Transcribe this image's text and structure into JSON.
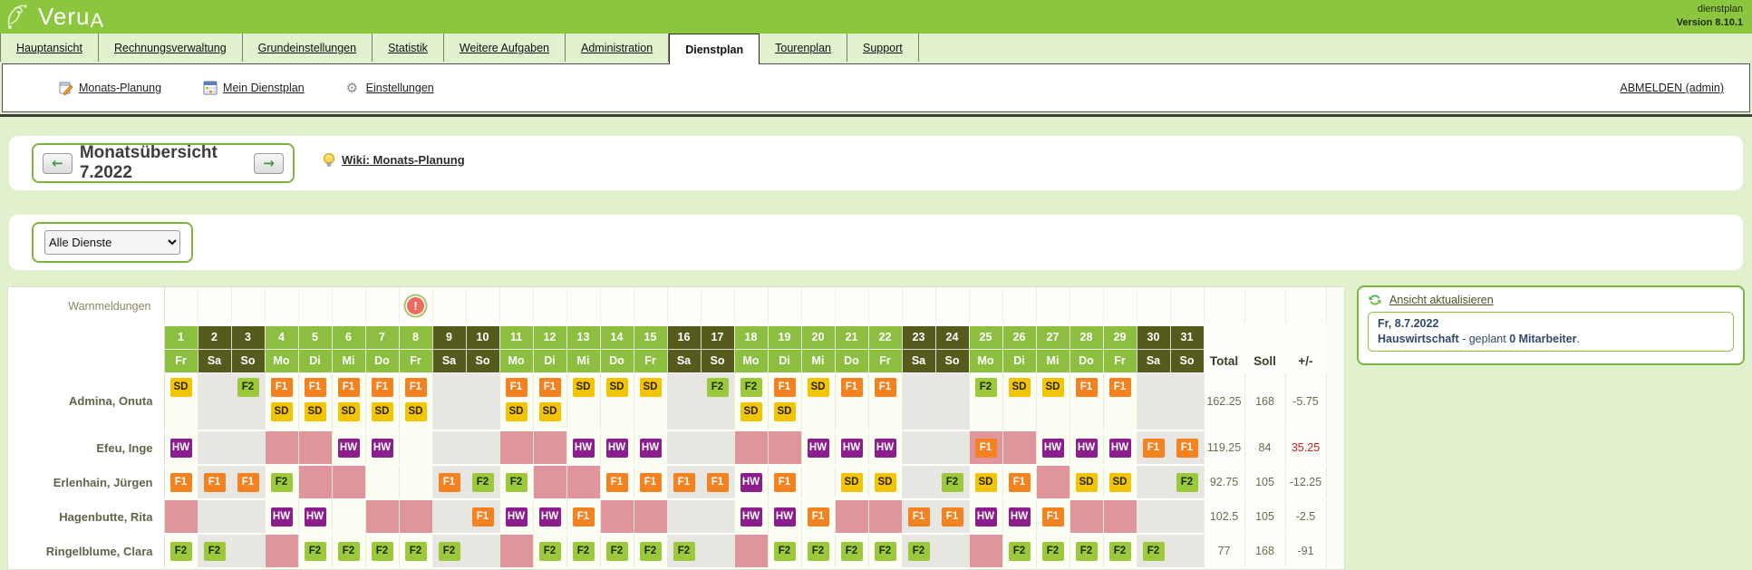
{
  "header": {
    "logo": "Veru",
    "logo_accent": "A",
    "app_name": "dienstplan",
    "version": "Version 8.10.1"
  },
  "tabs": [
    {
      "label": "Hauptansicht",
      "active": false
    },
    {
      "label": "Rechnungsverwaltung",
      "active": false
    },
    {
      "label": "Grundeinstellungen",
      "active": false
    },
    {
      "label": "Statistik",
      "active": false
    },
    {
      "label": "Weitere Aufgaben",
      "active": false
    },
    {
      "label": "Administration",
      "active": false
    },
    {
      "label": "Dienstplan",
      "active": true
    },
    {
      "label": "Tourenplan",
      "active": false
    },
    {
      "label": "Support",
      "active": false
    }
  ],
  "toolbar": {
    "links": [
      {
        "label": "Monats-Planung",
        "icon": "calendar-pencil-icon"
      },
      {
        "label": "Mein Dienstplan",
        "icon": "calendar-icon"
      },
      {
        "label": "Einstellungen",
        "icon": "gear-icon"
      }
    ],
    "logout_label": "ABMELDEN (admin)"
  },
  "month_nav": {
    "title": "Monatsübersicht 7.2022",
    "wiki_label": "Wiki: Monats-Planung"
  },
  "filter": {
    "selected": "Alle Dienste"
  },
  "roster": {
    "warn_label": "Warnmeldungen",
    "warning_days": [
      8
    ],
    "totals_headers": [
      "Total",
      "Soll",
      "+/-"
    ],
    "colors": {
      "header_day": "#8cbf3f",
      "header_weekend": "#565b1d",
      "cell_weekday": "#fcfdf3",
      "cell_weekend": "#e7e6e3",
      "cell_absence": "#e0949c"
    },
    "shift_types": {
      "SD": {
        "bg": "#f2c500",
        "fg": "#2b2300"
      },
      "F1": {
        "bg": "#f48220",
        "fg": "#ffffff"
      },
      "F2": {
        "bg": "#9cc93c",
        "fg": "#1d2a00"
      },
      "HW": {
        "bg": "#8b1d8d",
        "fg": "#ffffff"
      }
    },
    "days": [
      {
        "d": 1,
        "w": "Fr"
      },
      {
        "d": 2,
        "w": "Sa"
      },
      {
        "d": 3,
        "w": "So"
      },
      {
        "d": 4,
        "w": "Mo"
      },
      {
        "d": 5,
        "w": "Di"
      },
      {
        "d": 6,
        "w": "Mi"
      },
      {
        "d": 7,
        "w": "Do"
      },
      {
        "d": 8,
        "w": "Fr"
      },
      {
        "d": 9,
        "w": "Sa"
      },
      {
        "d": 10,
        "w": "So"
      },
      {
        "d": 11,
        "w": "Mo"
      },
      {
        "d": 12,
        "w": "Di"
      },
      {
        "d": 13,
        "w": "Mi"
      },
      {
        "d": 14,
        "w": "Do"
      },
      {
        "d": 15,
        "w": "Fr"
      },
      {
        "d": 16,
        "w": "Sa"
      },
      {
        "d": 17,
        "w": "So"
      },
      {
        "d": 18,
        "w": "Mo"
      },
      {
        "d": 19,
        "w": "Di"
      },
      {
        "d": 20,
        "w": "Mi"
      },
      {
        "d": 21,
        "w": "Do"
      },
      {
        "d": 22,
        "w": "Fr"
      },
      {
        "d": 23,
        "w": "Sa"
      },
      {
        "d": 24,
        "w": "So"
      },
      {
        "d": 25,
        "w": "Mo"
      },
      {
        "d": 26,
        "w": "Di"
      },
      {
        "d": 27,
        "w": "Mi"
      },
      {
        "d": 28,
        "w": "Do"
      },
      {
        "d": 29,
        "w": "Fr"
      },
      {
        "d": 30,
        "w": "Sa"
      },
      {
        "d": 31,
        "w": "So"
      }
    ],
    "employees": [
      {
        "name": "Admina, Onuta",
        "tall": true,
        "total": "162.25",
        "soll": "168",
        "diff": "-5.75",
        "diff_red": false,
        "cells": {
          "1": {
            "b": [
              "SD"
            ]
          },
          "3": {
            "b": [
              "F2"
            ]
          },
          "4": {
            "b": [
              "F1",
              "SD"
            ]
          },
          "5": {
            "b": [
              "F1",
              "SD"
            ]
          },
          "6": {
            "b": [
              "F1",
              "SD"
            ]
          },
          "7": {
            "b": [
              "F1",
              "SD"
            ]
          },
          "8": {
            "b": [
              "F1",
              "SD"
            ]
          },
          "11": {
            "b": [
              "F1",
              "SD"
            ]
          },
          "12": {
            "b": [
              "F1",
              "SD"
            ]
          },
          "13": {
            "b": [
              "SD"
            ]
          },
          "14": {
            "b": [
              "SD"
            ]
          },
          "15": {
            "b": [
              "SD"
            ]
          },
          "17": {
            "b": [
              "F2"
            ]
          },
          "18": {
            "b": [
              "F2",
              "SD"
            ]
          },
          "19": {
            "b": [
              "F1",
              "SD"
            ]
          },
          "20": {
            "b": [
              "SD"
            ]
          },
          "21": {
            "b": [
              "F1"
            ]
          },
          "22": {
            "b": [
              "F1"
            ]
          },
          "25": {
            "b": [
              "F2"
            ]
          },
          "26": {
            "b": [
              "SD"
            ]
          },
          "27": {
            "b": [
              "SD"
            ]
          },
          "28": {
            "b": [
              "F1"
            ]
          },
          "29": {
            "b": [
              "F1"
            ]
          }
        }
      },
      {
        "name": "Efeu, Inge",
        "tall": false,
        "total": "119.25",
        "soll": "84",
        "diff": "35.25",
        "diff_red": true,
        "cells": {
          "1": {
            "b": [
              "HW"
            ]
          },
          "4": {
            "abs": true
          },
          "5": {
            "abs": true
          },
          "6": {
            "b": [
              "HW"
            ]
          },
          "7": {
            "b": [
              "HW"
            ]
          },
          "11": {
            "abs": true
          },
          "12": {
            "abs": true
          },
          "13": {
            "b": [
              "HW"
            ]
          },
          "14": {
            "b": [
              "HW"
            ]
          },
          "15": {
            "b": [
              "HW"
            ]
          },
          "18": {
            "abs": true
          },
          "19": {
            "abs": true
          },
          "20": {
            "b": [
              "HW"
            ]
          },
          "21": {
            "b": [
              "HW"
            ]
          },
          "22": {
            "b": [
              "HW"
            ]
          },
          "25": {
            "b": [
              "F1"
            ],
            "abs": true
          },
          "26": {
            "abs": true
          },
          "27": {
            "b": [
              "HW"
            ]
          },
          "28": {
            "b": [
              "HW"
            ]
          },
          "29": {
            "b": [
              "HW"
            ]
          },
          "30": {
            "b": [
              "F1"
            ]
          },
          "31": {
            "b": [
              "F1"
            ]
          }
        }
      },
      {
        "name": "Erlenhain, Jürgen",
        "tall": false,
        "total": "92.75",
        "soll": "105",
        "diff": "-12.25",
        "diff_red": false,
        "cells": {
          "1": {
            "b": [
              "F1"
            ]
          },
          "2": {
            "b": [
              "F1"
            ]
          },
          "3": {
            "b": [
              "F1"
            ]
          },
          "4": {
            "b": [
              "F2"
            ]
          },
          "5": {
            "abs": true
          },
          "6": {
            "abs": true
          },
          "9": {
            "b": [
              "F1"
            ]
          },
          "10": {
            "b": [
              "F2"
            ]
          },
          "11": {
            "b": [
              "F2"
            ]
          },
          "12": {
            "abs": true
          },
          "13": {
            "abs": true
          },
          "14": {
            "b": [
              "F1"
            ]
          },
          "15": {
            "b": [
              "F1"
            ]
          },
          "16": {
            "b": [
              "F1"
            ]
          },
          "17": {
            "b": [
              "F1"
            ]
          },
          "18": {
            "b": [
              "HW"
            ]
          },
          "19": {
            "b": [
              "F1"
            ]
          },
          "21": {
            "b": [
              "SD"
            ]
          },
          "22": {
            "b": [
              "SD"
            ]
          },
          "24": {
            "b": [
              "F2"
            ]
          },
          "25": {
            "b": [
              "SD"
            ]
          },
          "26": {
            "b": [
              "F1"
            ]
          },
          "27": {
            "abs": true
          },
          "28": {
            "b": [
              "SD"
            ]
          },
          "29": {
            "b": [
              "SD"
            ]
          },
          "31": {
            "b": [
              "F2"
            ]
          }
        }
      },
      {
        "name": "Hagenbutte, Rita",
        "tall": false,
        "total": "102.5",
        "soll": "105",
        "diff": "-2.5",
        "diff_red": false,
        "cells": {
          "1": {
            "abs": true
          },
          "4": {
            "b": [
              "HW"
            ]
          },
          "5": {
            "b": [
              "HW"
            ]
          },
          "7": {
            "abs": true
          },
          "8": {
            "abs": true
          },
          "10": {
            "b": [
              "F1"
            ]
          },
          "11": {
            "b": [
              "HW"
            ]
          },
          "12": {
            "b": [
              "HW"
            ]
          },
          "13": {
            "b": [
              "F1"
            ]
          },
          "14": {
            "abs": true
          },
          "15": {
            "abs": true
          },
          "18": {
            "b": [
              "HW"
            ]
          },
          "19": {
            "b": [
              "HW"
            ]
          },
          "20": {
            "b": [
              "F1"
            ]
          },
          "21": {
            "abs": true
          },
          "22": {
            "abs": true
          },
          "23": {
            "b": [
              "F1"
            ]
          },
          "24": {
            "b": [
              "F1"
            ]
          },
          "25": {
            "b": [
              "HW"
            ]
          },
          "26": {
            "b": [
              "HW"
            ]
          },
          "27": {
            "b": [
              "F1"
            ]
          },
          "28": {
            "abs": true
          },
          "29": {
            "abs": true
          }
        }
      },
      {
        "name": "Ringelblume, Clara",
        "tall": false,
        "total": "77",
        "soll": "168",
        "diff": "-91",
        "diff_red": false,
        "cells": {
          "1": {
            "b": [
              "F2"
            ]
          },
          "2": {
            "b": [
              "F2"
            ]
          },
          "4": {
            "abs": true
          },
          "5": {
            "b": [
              "F2"
            ]
          },
          "6": {
            "b": [
              "F2"
            ]
          },
          "7": {
            "b": [
              "F2"
            ]
          },
          "8": {
            "b": [
              "F2"
            ]
          },
          "9": {
            "b": [
              "F2"
            ]
          },
          "11": {
            "abs": true
          },
          "12": {
            "b": [
              "F2"
            ]
          },
          "13": {
            "b": [
              "F2"
            ]
          },
          "14": {
            "b": [
              "F2"
            ]
          },
          "15": {
            "b": [
              "F2"
            ]
          },
          "16": {
            "b": [
              "F2"
            ]
          },
          "18": {
            "abs": true
          },
          "19": {
            "b": [
              "F2"
            ]
          },
          "20": {
            "b": [
              "F2"
            ]
          },
          "21": {
            "b": [
              "F2"
            ]
          },
          "22": {
            "b": [
              "F2"
            ]
          },
          "23": {
            "b": [
              "F2"
            ]
          },
          "25": {
            "abs": true
          },
          "26": {
            "b": [
              "F2"
            ]
          },
          "27": {
            "b": [
              "F2"
            ]
          },
          "28": {
            "b": [
              "F2"
            ]
          },
          "29": {
            "b": [
              "F2"
            ]
          },
          "30": {
            "b": [
              "F2"
            ]
          }
        }
      }
    ]
  },
  "side_panel": {
    "refresh_label": "Ansicht aktualisieren",
    "info_date": "Fr, 8.7.2022",
    "info_shift": "Hauswirtschaft",
    "info_mid": " - geplant ",
    "info_count": "0 Mitarbeiter",
    "info_end": "."
  }
}
